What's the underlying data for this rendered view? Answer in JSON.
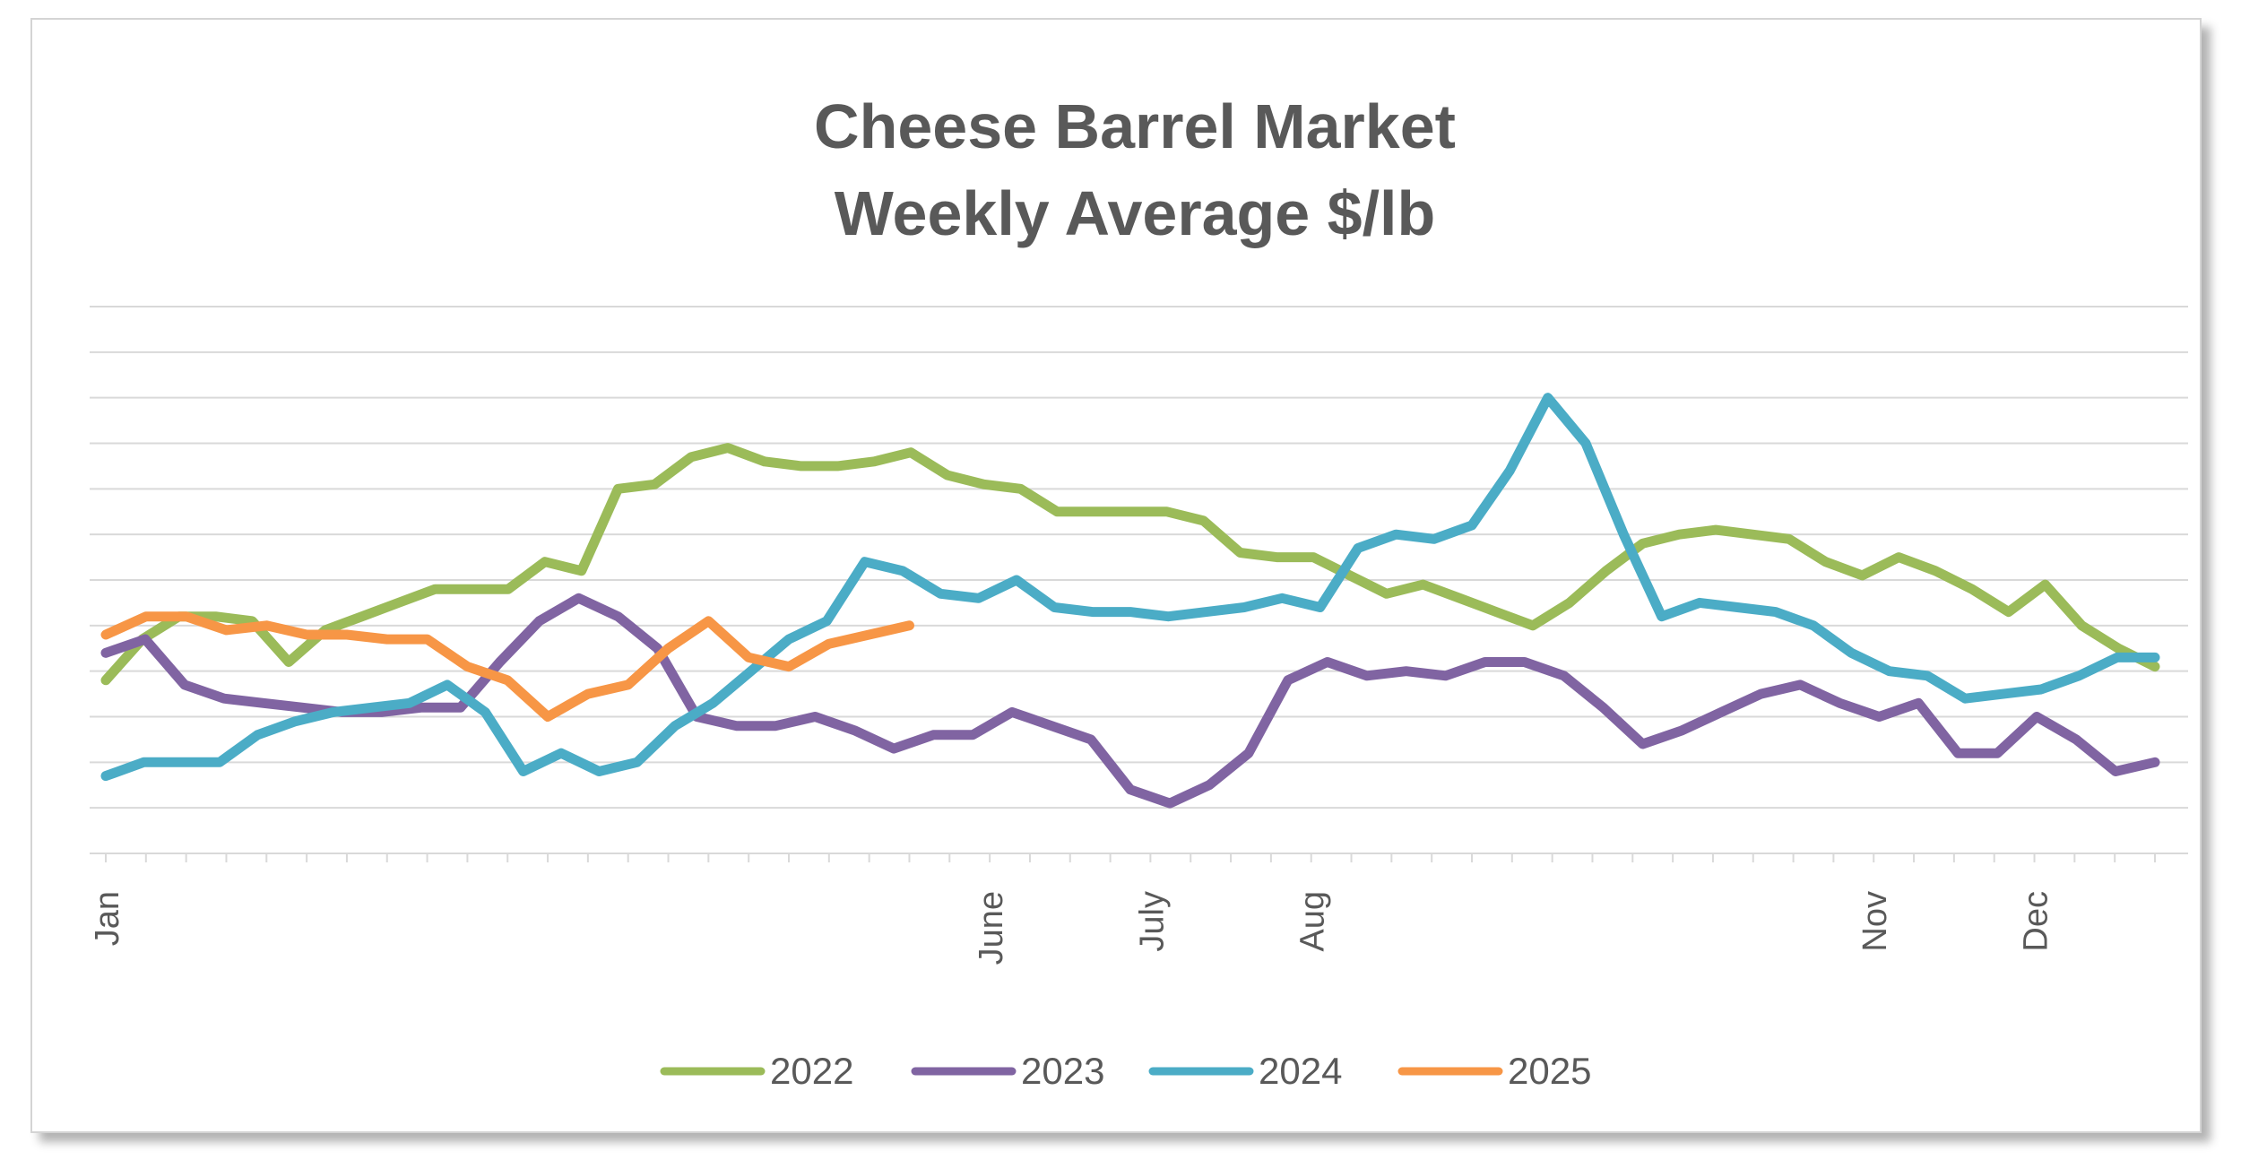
{
  "chart_data": {
    "type": "line",
    "title_lines": [
      "Cheese Barrel Market",
      "Weekly Average $/lb"
    ],
    "x_tick_labels": [
      {
        "label": "Jan",
        "week": 1
      },
      {
        "label": "June",
        "week": 23
      },
      {
        "label": "July",
        "week": 27
      },
      {
        "label": "Aug",
        "week": 31
      },
      {
        "label": "Nov",
        "week": 45
      },
      {
        "label": "Dec",
        "week": 49
      }
    ],
    "xlim": [
      1,
      52
    ],
    "ylim": [
      1.0,
      2.2
    ],
    "gridlines": "horizontal",
    "legend_position": "bottom",
    "series": [
      {
        "name": "2022",
        "color": "#9bbb59",
        "values": [
          1.38,
          1.47,
          1.52,
          1.52,
          1.51,
          1.42,
          1.49,
          1.52,
          1.55,
          1.58,
          1.58,
          1.58,
          1.64,
          1.62,
          1.8,
          1.81,
          1.87,
          1.89,
          1.86,
          1.85,
          1.85,
          1.86,
          1.88,
          1.83,
          1.81,
          1.8,
          1.75,
          1.75,
          1.75,
          1.75,
          1.73,
          1.66,
          1.65,
          1.65,
          1.61,
          1.57,
          1.59,
          1.56,
          1.53,
          1.5,
          1.55,
          1.62,
          1.68,
          1.7,
          1.71,
          1.7,
          1.69,
          1.64,
          1.61,
          1.65,
          1.62,
          1.58,
          1.53,
          1.59,
          1.5,
          1.45,
          1.41
        ]
      },
      {
        "name": "2023",
        "color": "#8064a2",
        "values": [
          1.44,
          1.47,
          1.37,
          1.34,
          1.33,
          1.32,
          1.31,
          1.31,
          1.32,
          1.32,
          1.42,
          1.51,
          1.56,
          1.52,
          1.45,
          1.3,
          1.28,
          1.28,
          1.3,
          1.27,
          1.23,
          1.26,
          1.26,
          1.31,
          1.28,
          1.25,
          1.14,
          1.11,
          1.15,
          1.22,
          1.38,
          1.42,
          1.39,
          1.4,
          1.39,
          1.42,
          1.42,
          1.39,
          1.32,
          1.24,
          1.27,
          1.31,
          1.35,
          1.37,
          1.33,
          1.3,
          1.33,
          1.22,
          1.22,
          1.3,
          1.25,
          1.18,
          1.2
        ]
      },
      {
        "name": "2024",
        "color": "#4bacc6",
        "values": [
          1.17,
          1.2,
          1.2,
          1.2,
          1.26,
          1.29,
          1.31,
          1.32,
          1.33,
          1.37,
          1.31,
          1.18,
          1.22,
          1.18,
          1.2,
          1.28,
          1.33,
          1.4,
          1.47,
          1.51,
          1.64,
          1.62,
          1.57,
          1.56,
          1.6,
          1.54,
          1.53,
          1.53,
          1.52,
          1.53,
          1.54,
          1.56,
          1.54,
          1.67,
          1.7,
          1.69,
          1.72,
          1.84,
          2.0,
          1.9,
          1.7,
          1.52,
          1.55,
          1.54,
          1.53,
          1.5,
          1.44,
          1.4,
          1.39,
          1.34,
          1.35,
          1.36,
          1.39,
          1.43,
          1.43
        ]
      },
      {
        "name": "2025",
        "color": "#f79646",
        "values": [
          1.48,
          1.52,
          1.52,
          1.49,
          1.5,
          1.48,
          1.48,
          1.47,
          1.47,
          1.41,
          1.38,
          1.3,
          1.35,
          1.37,
          1.45,
          1.51,
          1.43,
          1.41,
          1.46,
          1.48,
          1.5
        ]
      }
    ]
  }
}
